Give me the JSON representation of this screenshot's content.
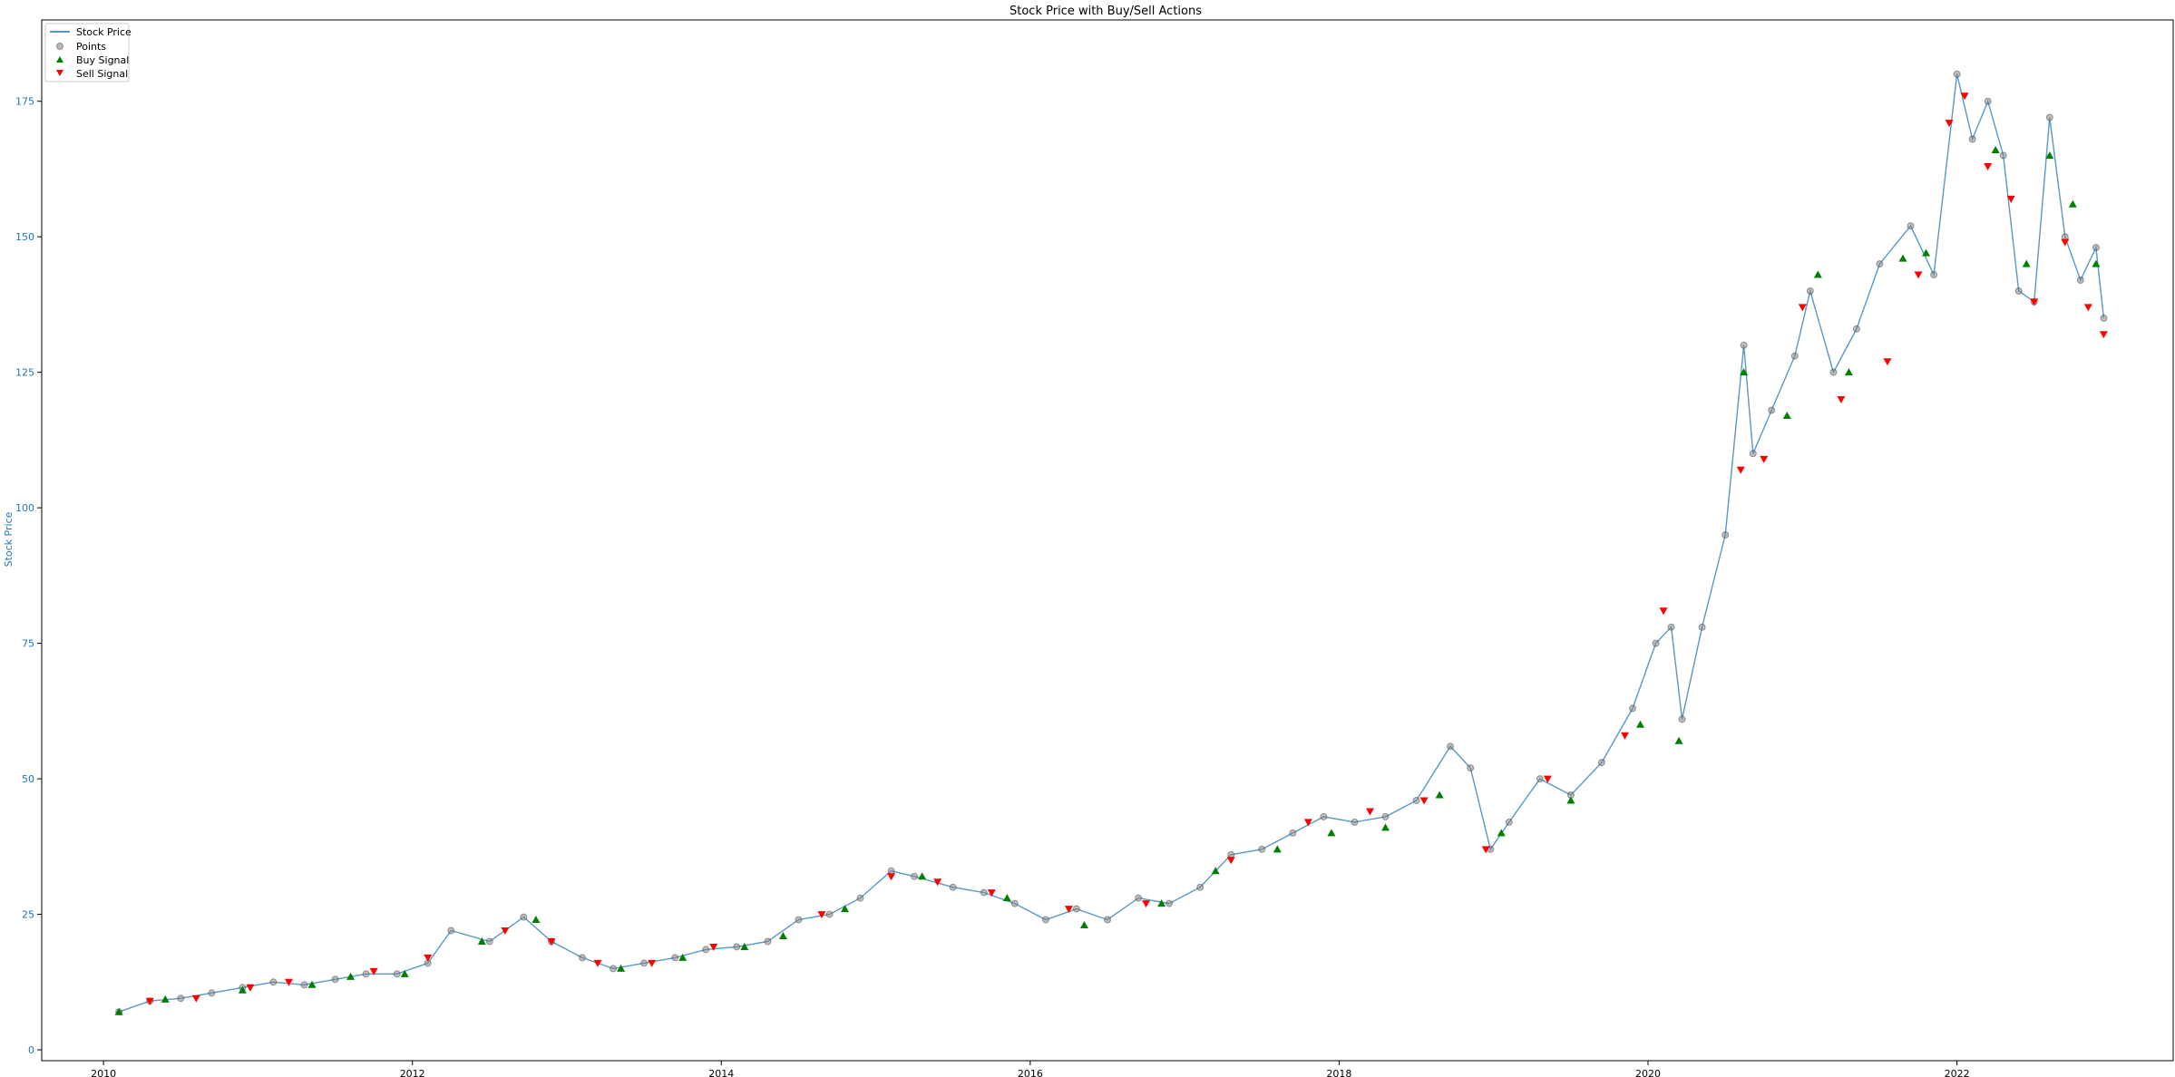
{
  "chart_data": {
    "type": "line",
    "title": "Stock Price with Buy/Sell Actions",
    "xlabel": "",
    "ylabel": "Stock Price",
    "xlim": [
      2009.6,
      2023.4
    ],
    "ylim": [
      -2,
      190
    ],
    "xticks": [
      2010,
      2012,
      2014,
      2016,
      2018,
      2020,
      2022
    ],
    "xtick_labels": [
      "2010",
      "2012",
      "2014",
      "2016",
      "2018",
      "2020",
      "2022"
    ],
    "yticks": [
      0,
      25,
      50,
      75,
      100,
      125,
      150,
      175
    ],
    "ytick_labels": [
      "0",
      "25",
      "50",
      "75",
      "100",
      "125",
      "150",
      "175"
    ],
    "grid": false,
    "legend_position": "top-left",
    "legend": [
      "Stock Price",
      "Points",
      "Buy Signal",
      "Sell Signal"
    ],
    "colors": {
      "price_line": "#1f77b4",
      "points": "#7f7f7f",
      "buy": "#008000",
      "sell": "#ff0000",
      "ytick": "#1f77b4"
    },
    "series": [
      {
        "name": "Stock Price",
        "x": [
          2010.1,
          2010.3,
          2010.5,
          2010.7,
          2010.9,
          2011.1,
          2011.3,
          2011.5,
          2011.7,
          2011.9,
          2012.1,
          2012.25,
          2012.5,
          2012.72,
          2012.9,
          2013.1,
          2013.3,
          2013.5,
          2013.7,
          2013.9,
          2014.1,
          2014.3,
          2014.5,
          2014.7,
          2014.9,
          2015.1,
          2015.25,
          2015.5,
          2015.7,
          2015.9,
          2016.1,
          2016.3,
          2016.5,
          2016.7,
          2016.9,
          2017.1,
          2017.3,
          2017.5,
          2017.7,
          2017.9,
          2018.1,
          2018.3,
          2018.5,
          2018.72,
          2018.85,
          2018.98,
          2019.1,
          2019.3,
          2019.5,
          2019.7,
          2019.9,
          2020.05,
          2020.15,
          2020.22,
          2020.35,
          2020.5,
          2020.62,
          2020.68,
          2020.8,
          2020.95,
          2021.05,
          2021.2,
          2021.35,
          2021.5,
          2021.7,
          2021.85,
          2022.0,
          2022.1,
          2022.2,
          2022.3,
          2022.4,
          2022.5,
          2022.6,
          2022.7,
          2022.8,
          2022.9,
          2022.95
        ],
        "values": [
          7,
          9,
          9.5,
          10.5,
          11.5,
          12.5,
          12,
          13,
          14,
          14,
          16,
          22,
          20,
          24.5,
          20,
          17,
          15,
          16,
          17,
          18.5,
          19,
          20,
          24,
          25,
          28,
          33,
          32,
          30,
          29,
          27,
          24,
          26,
          24,
          28,
          27,
          30,
          36,
          37,
          40,
          43,
          42,
          43,
          46,
          56,
          52,
          37,
          42,
          50,
          47,
          53,
          63,
          75,
          78,
          61,
          78,
          95,
          130,
          110,
          118,
          128,
          140,
          125,
          133,
          145,
          152,
          143,
          180,
          168,
          175,
          165,
          140,
          138,
          172,
          150,
          142,
          148,
          135
        ]
      }
    ],
    "signals": {
      "buy_x": [
        2010.1,
        2010.4,
        2010.9,
        2011.35,
        2011.6,
        2011.95,
        2012.45,
        2012.8,
        2013.35,
        2013.75,
        2014.15,
        2014.4,
        2014.8,
        2015.3,
        2015.85,
        2016.35,
        2016.85,
        2017.2,
        2017.6,
        2017.95,
        2018.3,
        2018.65,
        2019.05,
        2019.5,
        2019.95,
        2020.2,
        2020.62,
        2020.9,
        2021.1,
        2021.3,
        2021.65,
        2021.8,
        2022.25,
        2022.45,
        2022.6,
        2022.75,
        2022.9
      ],
      "buy_y": [
        7,
        9.3,
        11,
        12,
        13.5,
        14,
        20,
        24,
        15,
        17,
        19,
        21,
        26,
        32,
        28,
        23,
        27,
        33,
        37,
        40,
        41,
        47,
        40,
        46,
        60,
        57,
        125,
        117,
        143,
        125,
        146,
        147,
        166,
        145,
        165,
        156,
        145
      ],
      "sell_x": [
        2010.3,
        2010.6,
        2010.95,
        2011.2,
        2011.75,
        2012.1,
        2012.6,
        2012.9,
        2013.2,
        2013.55,
        2013.95,
        2014.65,
        2015.1,
        2015.4,
        2015.75,
        2016.25,
        2016.75,
        2017.3,
        2017.8,
        2018.2,
        2018.55,
        2018.95,
        2019.35,
        2019.85,
        2020.1,
        2020.6,
        2020.75,
        2021.0,
        2021.25,
        2021.55,
        2021.75,
        2021.95,
        2022.05,
        2022.2,
        2022.35,
        2022.5,
        2022.7,
        2022.85,
        2022.95
      ],
      "sell_y": [
        9,
        9.5,
        11.5,
        12.5,
        14.5,
        17,
        22,
        20,
        16,
        16,
        19,
        25,
        32,
        31,
        29,
        26,
        27,
        35,
        42,
        44,
        46,
        37,
        50,
        58,
        81,
        107,
        109,
        137,
        120,
        127,
        143,
        171,
        176,
        163,
        157,
        138,
        149,
        137,
        132
      ]
    }
  }
}
